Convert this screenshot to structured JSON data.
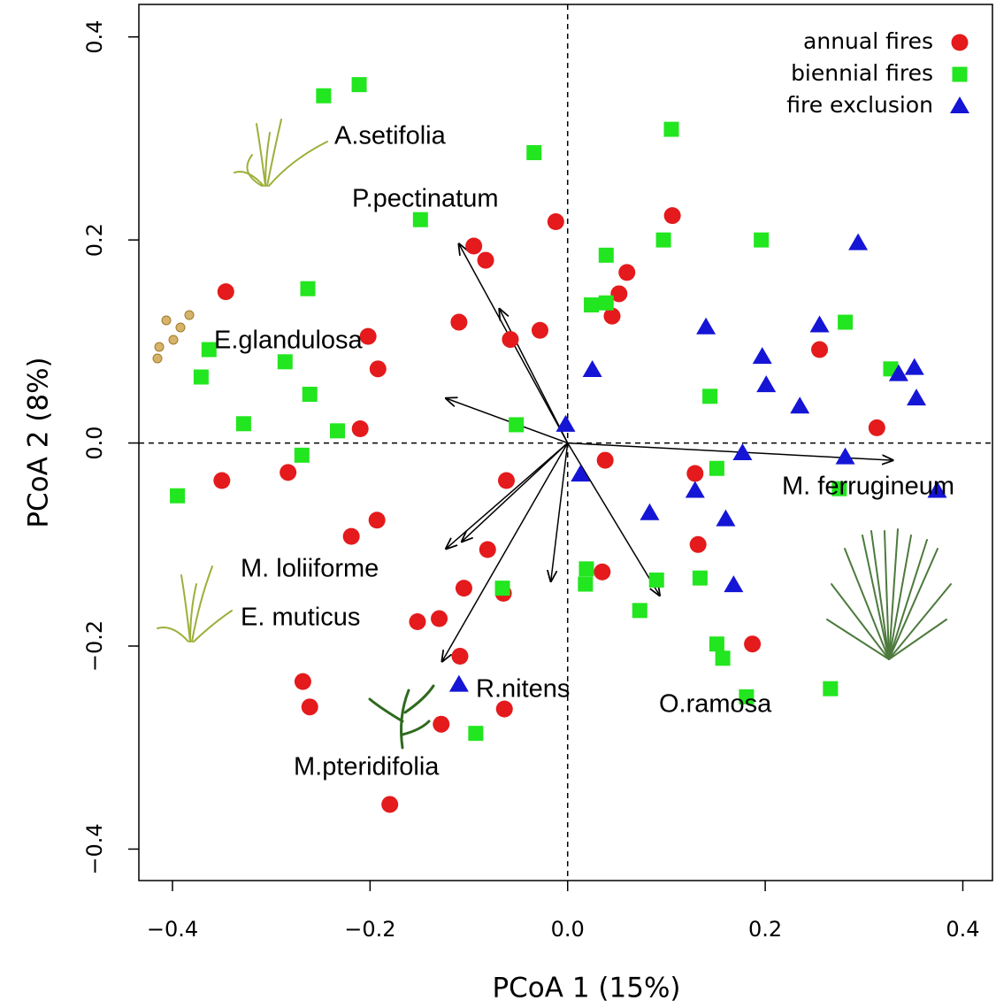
{
  "chart_data": {
    "type": "scatter",
    "x_label": "PCoA 1 (15%)",
    "y_label": "PCoA 2 (8%)",
    "xlim": [
      -0.434,
      0.43
    ],
    "ylim": [
      -0.431,
      0.432
    ],
    "xticks": [
      {
        "value": -0.4,
        "label": "−0.4"
      },
      {
        "value": -0.2,
        "label": "−0.2"
      },
      {
        "value": 0,
        "label": "0.0"
      },
      {
        "value": 0.2,
        "label": "0.2"
      },
      {
        "value": 0.4,
        "label": "0.4"
      }
    ],
    "yticks": [
      {
        "value": -0.4,
        "label": "−0.4"
      },
      {
        "value": -0.2,
        "label": "−0.2"
      },
      {
        "value": 0,
        "label": "0.0"
      },
      {
        "value": 0.2,
        "label": "0.2"
      },
      {
        "value": 0.4,
        "label": "0.4"
      }
    ],
    "reference_x": 0,
    "reference_y": 0,
    "legend": "top-right",
    "series": [
      {
        "name": "annual fires",
        "color": "#e41a1c",
        "marker": "circle",
        "x": [
          -0.346,
          -0.35,
          -0.283,
          -0.202,
          -0.192,
          -0.21,
          -0.219,
          -0.193,
          -0.095,
          -0.083,
          -0.11,
          -0.058,
          -0.028,
          -0.012,
          0.106,
          0.052,
          0.06,
          0.045,
          0.255,
          0.313,
          0.038,
          0.129,
          0.132,
          0.035,
          -0.081,
          -0.105,
          -0.065,
          -0.13,
          -0.152,
          -0.109,
          -0.268,
          -0.261,
          -0.064,
          -0.128,
          -0.18,
          0.187,
          -0.062
        ],
        "values": [
          0.149,
          -0.037,
          -0.029,
          0.105,
          0.073,
          0.014,
          -0.092,
          -0.076,
          0.194,
          0.18,
          0.119,
          0.102,
          0.111,
          0.218,
          0.224,
          0.147,
          0.168,
          0.125,
          0.092,
          0.015,
          -0.017,
          -0.03,
          -0.1,
          -0.127,
          -0.105,
          -0.143,
          -0.148,
          -0.173,
          -0.176,
          -0.21,
          -0.235,
          -0.26,
          -0.262,
          -0.277,
          -0.356,
          -0.198,
          -0.037
        ]
      },
      {
        "name": "biennial fires",
        "color": "#22e61f",
        "marker": "square",
        "x": [
          -0.247,
          -0.211,
          -0.034,
          0.105,
          -0.149,
          -0.263,
          0.039,
          0.097,
          0.196,
          0.024,
          0.039,
          0.281,
          -0.363,
          -0.371,
          -0.286,
          -0.261,
          -0.328,
          -0.233,
          -0.269,
          -0.052,
          0.144,
          0.327,
          -0.395,
          0.151,
          0.275,
          0.134,
          0.09,
          0.019,
          0.018,
          0.073,
          -0.066,
          0.151,
          0.157,
          0.181,
          0.266,
          -0.093
        ],
        "values": [
          0.342,
          0.353,
          0.286,
          0.309,
          0.22,
          0.152,
          0.185,
          0.2,
          0.2,
          0.136,
          0.138,
          0.119,
          0.092,
          0.065,
          0.08,
          0.048,
          0.019,
          0.012,
          -0.012,
          0.018,
          0.046,
          0.073,
          -0.052,
          -0.025,
          -0.045,
          -0.133,
          -0.135,
          -0.124,
          -0.139,
          -0.165,
          -0.143,
          -0.198,
          -0.212,
          -0.25,
          -0.242,
          -0.286
        ]
      },
      {
        "name": "fire exclusion",
        "color": "#1515d6",
        "marker": "triangle",
        "x": [
          0.294,
          0.14,
          0.255,
          0.197,
          0.201,
          0.235,
          0.351,
          0.335,
          0.353,
          -0.002,
          0.025,
          0.013,
          0.177,
          0.281,
          0.083,
          0.129,
          0.16,
          0.168,
          -0.11,
          0.374
        ],
        "values": [
          0.197,
          0.114,
          0.116,
          0.085,
          0.057,
          0.036,
          0.074,
          0.068,
          0.044,
          0.018,
          0.072,
          -0.031,
          -0.01,
          -0.014,
          -0.069,
          -0.047,
          -0.075,
          -0.14,
          -0.238,
          -0.047
        ]
      }
    ],
    "vectors": {
      "x": [
        -0.11,
        -0.069,
        -0.123,
        0.329,
        -0.123,
        -0.107,
        -0.017,
        -0.127,
        0.093
      ],
      "y": [
        0.196,
        0.132,
        0.044,
        -0.017,
        -0.104,
        -0.097,
        -0.136,
        -0.215,
        -0.15
      ]
    },
    "species": [
      "A.setifolia",
      "P.pectinatum",
      "E.glandulosa",
      "M. ferrugineum",
      "M. loliiforme",
      "E. muticus",
      "R.nitens",
      "O.ramosa",
      "M.pteridifolia"
    ]
  }
}
